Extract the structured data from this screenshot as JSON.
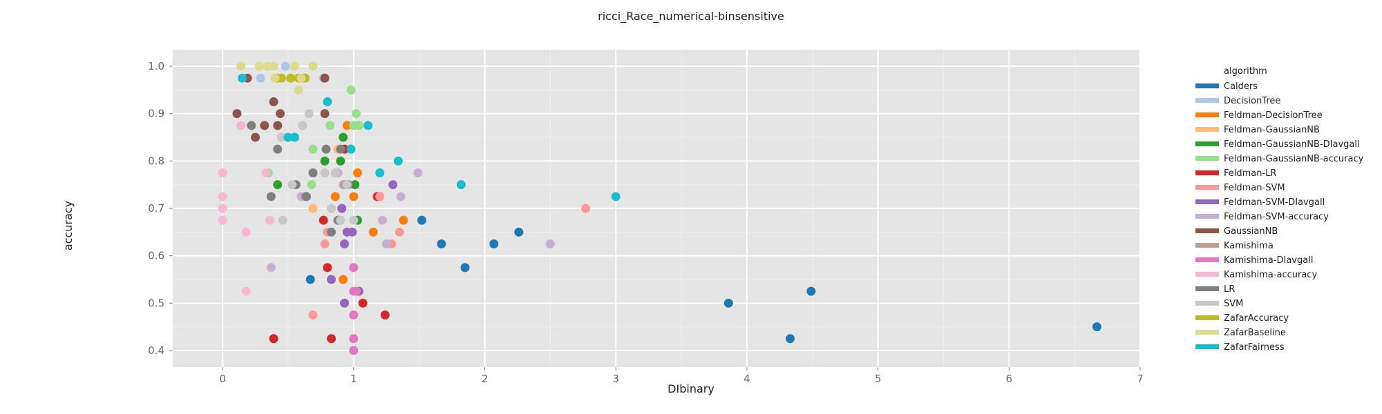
{
  "chart_data": {
    "type": "scatter",
    "title": "ricci_Race_numerical-binsensitive",
    "xlabel": "DIbinary",
    "ylabel": "accuracy",
    "xlim": [
      -0.38,
      7.0
    ],
    "ylim": [
      0.365,
      1.035
    ],
    "x_ticks": [
      0,
      1,
      2,
      3,
      4,
      5,
      6,
      7
    ],
    "y_ticks": [
      0.4,
      0.5,
      0.6,
      0.7,
      0.8,
      0.9,
      1.0
    ],
    "x_tick_labels": [
      "0",
      "1",
      "2",
      "3",
      "4",
      "5",
      "6",
      "7"
    ],
    "y_tick_labels": [
      "0.4",
      "0.5",
      "0.6",
      "0.7",
      "0.8",
      "0.9",
      "1.0"
    ],
    "grid": true,
    "legend_title": "algorithm",
    "legend_position": "right",
    "series": [
      {
        "name": "Calders",
        "color": "#1f77b4",
        "points": [
          [
            0.67,
            0.55
          ],
          [
            1.52,
            0.675
          ],
          [
            1.67,
            0.625
          ],
          [
            1.85,
            0.575
          ],
          [
            2.07,
            0.625
          ],
          [
            2.26,
            0.65
          ],
          [
            3.86,
            0.5
          ],
          [
            4.33,
            0.425
          ],
          [
            4.49,
            0.525
          ],
          [
            6.67,
            0.45
          ]
        ]
      },
      {
        "name": "DecisionTree",
        "color": "#aec7e8",
        "points": [
          [
            0.29,
            0.975
          ],
          [
            0.48,
            1.0
          ],
          [
            0.62,
            0.975
          ],
          [
            0.77,
            0.975
          ]
        ]
      },
      {
        "name": "Feldman-DecisionTree",
        "color": "#ff7f0e",
        "points": [
          [
            0.86,
            0.725
          ],
          [
            0.92,
            0.55
          ],
          [
            0.95,
            0.875
          ],
          [
            1.0,
            0.725
          ],
          [
            1.03,
            0.775
          ],
          [
            1.15,
            0.65
          ],
          [
            1.38,
            0.675
          ]
        ]
      },
      {
        "name": "Feldman-GaussianNB",
        "color": "#ffbb78",
        "points": [
          [
            0.69,
            0.7
          ],
          [
            0.88,
            0.825
          ]
        ]
      },
      {
        "name": "Feldman-GaussianNB-DIavgall",
        "color": "#2ca02c",
        "points": [
          [
            0.42,
            0.75
          ],
          [
            0.78,
            0.8
          ],
          [
            0.9,
            0.8
          ],
          [
            0.92,
            0.85
          ],
          [
            1.01,
            0.75
          ],
          [
            1.03,
            0.675
          ]
        ]
      },
      {
        "name": "Feldman-GaussianNB-accuracy",
        "color": "#98df8a",
        "points": [
          [
            0.35,
            0.775
          ],
          [
            0.68,
            0.75
          ],
          [
            0.69,
            0.825
          ],
          [
            0.82,
            0.875
          ],
          [
            0.98,
            0.95
          ],
          [
            1.0,
            0.875
          ],
          [
            1.02,
            0.9
          ],
          [
            1.04,
            0.875
          ]
        ]
      },
      {
        "name": "Feldman-LR",
        "color": "#d62728",
        "points": [
          [
            0.39,
            0.425
          ],
          [
            0.77,
            0.675
          ],
          [
            0.8,
            0.575
          ],
          [
            0.83,
            0.425
          ],
          [
            0.93,
            0.825
          ],
          [
            1.07,
            0.5
          ],
          [
            1.18,
            0.725
          ],
          [
            1.24,
            0.475
          ]
        ]
      },
      {
        "name": "Feldman-SVM",
        "color": "#ff9896",
        "points": [
          [
            0.69,
            0.475
          ],
          [
            0.78,
            0.625
          ],
          [
            0.8,
            0.65
          ],
          [
            1.2,
            0.725
          ],
          [
            1.29,
            0.625
          ],
          [
            1.35,
            0.65
          ],
          [
            2.77,
            0.7
          ]
        ]
      },
      {
        "name": "Feldman-SVM-DIavgall",
        "color": "#9467bd",
        "points": [
          [
            0.83,
            0.55
          ],
          [
            0.91,
            0.7
          ],
          [
            0.93,
            0.5
          ],
          [
            0.93,
            0.625
          ],
          [
            0.95,
            0.65
          ],
          [
            0.99,
            0.65
          ],
          [
            1.04,
            0.525
          ],
          [
            1.3,
            0.75
          ]
        ]
      },
      {
        "name": "Feldman-SVM-accuracy",
        "color": "#c5b0d5",
        "points": [
          [
            0.37,
            0.575
          ],
          [
            0.6,
            0.725
          ],
          [
            0.88,
            0.775
          ],
          [
            0.92,
            0.75
          ],
          [
            1.22,
            0.675
          ],
          [
            1.25,
            0.625
          ],
          [
            1.36,
            0.725
          ],
          [
            1.49,
            0.775
          ],
          [
            2.5,
            0.625
          ]
        ]
      },
      {
        "name": "GaussianNB",
        "color": "#8c564b",
        "points": [
          [
            0.11,
            0.9
          ],
          [
            0.19,
            0.975
          ],
          [
            0.25,
            0.85
          ],
          [
            0.32,
            0.875
          ],
          [
            0.39,
            0.925
          ],
          [
            0.42,
            0.875
          ],
          [
            0.44,
            0.9
          ],
          [
            0.78,
            0.9
          ],
          [
            0.78,
            0.975
          ]
        ]
      },
      {
        "name": "Kamishima",
        "color": "#c49c94",
        "points": [
          [
            0.63,
            0.725
          ],
          [
            0.93,
            0.75
          ]
        ]
      },
      {
        "name": "Kamishima-DIavgall",
        "color": "#e377c2",
        "points": [
          [
            1.0,
            0.4
          ],
          [
            1.0,
            0.425
          ],
          [
            1.0,
            0.475
          ],
          [
            1.0,
            0.525
          ],
          [
            1.0,
            0.575
          ],
          [
            1.02,
            0.525
          ]
        ]
      },
      {
        "name": "Kamishima-accuracy",
        "color": "#f7b6d2",
        "points": [
          [
            0.0,
            0.675
          ],
          [
            0.0,
            0.7
          ],
          [
            0.0,
            0.725
          ],
          [
            0.0,
            0.775
          ],
          [
            0.14,
            0.875
          ],
          [
            0.18,
            0.525
          ],
          [
            0.18,
            0.65
          ],
          [
            0.33,
            0.775
          ],
          [
            0.36,
            0.675
          ]
        ]
      },
      {
        "name": "LR",
        "color": "#7f7f7f",
        "points": [
          [
            0.22,
            0.875
          ],
          [
            0.37,
            0.725
          ],
          [
            0.42,
            0.825
          ],
          [
            0.56,
            0.75
          ],
          [
            0.64,
            0.725
          ],
          [
            0.69,
            0.775
          ],
          [
            0.79,
            0.825
          ],
          [
            0.83,
            0.65
          ],
          [
            0.88,
            0.675
          ],
          [
            0.9,
            0.825
          ],
          [
            0.96,
            0.75
          ]
        ]
      },
      {
        "name": "SVM",
        "color": "#c7c7c7",
        "points": [
          [
            0.45,
            0.85
          ],
          [
            0.46,
            0.675
          ],
          [
            0.53,
            0.75
          ],
          [
            0.61,
            0.875
          ],
          [
            0.66,
            0.9
          ],
          [
            0.78,
            0.775
          ],
          [
            0.83,
            0.7
          ],
          [
            0.86,
            0.775
          ],
          [
            0.9,
            0.675
          ],
          [
            0.95,
            0.75
          ],
          [
            1.0,
            0.675
          ]
        ]
      },
      {
        "name": "ZafarAccuracy",
        "color": "#bcbd22",
        "points": [
          [
            0.42,
            0.975
          ],
          [
            0.45,
            0.975
          ],
          [
            0.52,
            0.975
          ],
          [
            0.58,
            0.975
          ],
          [
            0.63,
            0.975
          ]
        ]
      },
      {
        "name": "ZafarBaseline",
        "color": "#dbdb8d",
        "points": [
          [
            0.14,
            1.0
          ],
          [
            0.28,
            1.0
          ],
          [
            0.34,
            1.0
          ],
          [
            0.39,
            1.0
          ],
          [
            0.4,
            0.975
          ],
          [
            0.55,
            1.0
          ],
          [
            0.58,
            0.95
          ],
          [
            0.6,
            0.975
          ],
          [
            0.69,
            1.0
          ]
        ]
      },
      {
        "name": "ZafarFairness",
        "color": "#17becf",
        "points": [
          [
            0.15,
            0.975
          ],
          [
            0.5,
            0.85
          ],
          [
            0.55,
            0.85
          ],
          [
            0.8,
            0.925
          ],
          [
            0.98,
            0.825
          ],
          [
            1.11,
            0.875
          ],
          [
            1.2,
            0.775
          ],
          [
            1.34,
            0.8
          ],
          [
            1.82,
            0.75
          ],
          [
            3.0,
            0.725
          ]
        ]
      }
    ]
  }
}
